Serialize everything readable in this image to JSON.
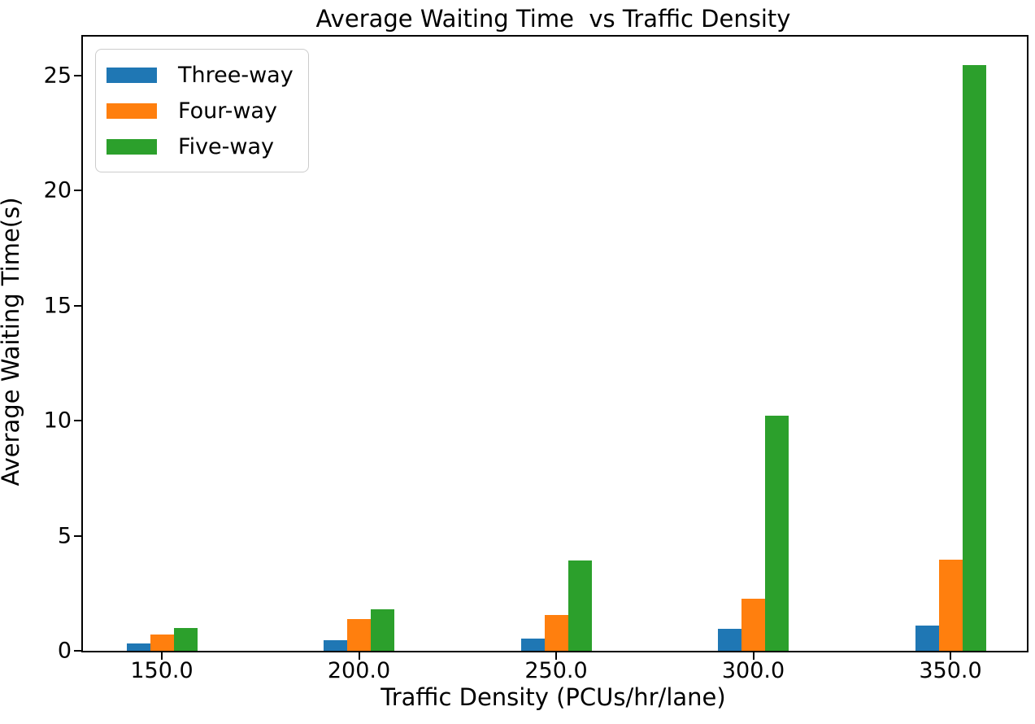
{
  "chart_data": {
    "type": "bar",
    "title": "Average Waiting Time  vs Traffic Density",
    "xlabel": "Traffic Density (PCUs/hr/lane)",
    "ylabel": "Average Waiting Time(s)",
    "categories": [
      "150.0",
      "200.0",
      "250.0",
      "300.0",
      "350.0"
    ],
    "series": [
      {
        "name": "Three-way",
        "color": "#1f77b4",
        "values": [
          0.32,
          0.45,
          0.52,
          0.97,
          1.08
        ]
      },
      {
        "name": "Four-way",
        "color": "#ff7f0e",
        "values": [
          0.7,
          1.37,
          1.56,
          2.27,
          3.97
        ]
      },
      {
        "name": "Five-way",
        "color": "#2ca02c",
        "values": [
          1.0,
          1.8,
          3.94,
          10.23,
          25.45
        ]
      }
    ],
    "yticks": [
      0,
      5,
      10,
      15,
      20,
      25
    ],
    "ylim": [
      0,
      26.7
    ],
    "legend_position": "upper left",
    "grid": false,
    "axis_color": "#000000",
    "background_color": "#ffffff"
  }
}
